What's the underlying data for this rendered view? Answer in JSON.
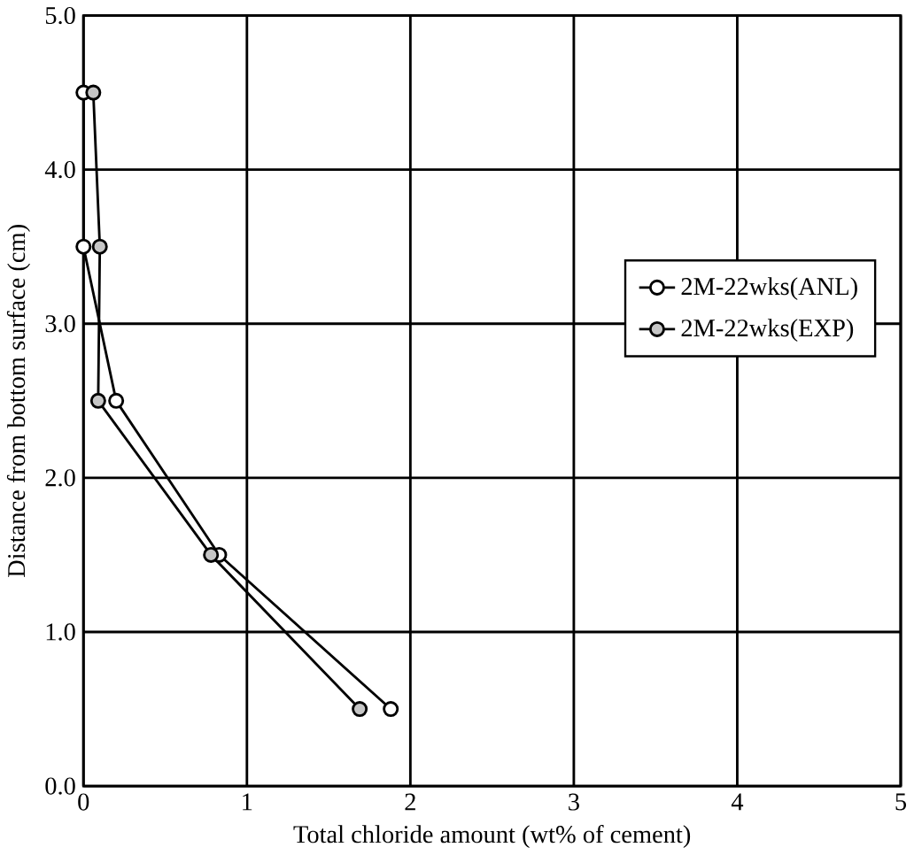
{
  "chart_data": {
    "type": "line",
    "xlabel": "Total chloride amount (wt% of cement)",
    "ylabel": "Distance from bottom surface (cm)",
    "xlim": [
      0,
      5
    ],
    "ylim": [
      0,
      5
    ],
    "xticks": [
      0,
      1,
      2,
      3,
      4,
      5
    ],
    "yticks": [
      {
        "value": 0,
        "label": "0.0"
      },
      {
        "value": 1,
        "label": "1.0"
      },
      {
        "value": 2,
        "label": "2.0"
      },
      {
        "value": 3,
        "label": "3.0"
      },
      {
        "value": 4,
        "label": "4.0"
      },
      {
        "value": 5,
        "label": "5.0"
      }
    ],
    "grid": true,
    "legend": "right",
    "marker": "circle",
    "line_style": "solid",
    "series": [
      {
        "name": "2M-22wks(ANL)",
        "color": "#000000",
        "x": [
          1.88,
          0.83,
          0.2,
          0.0,
          0.0
        ],
        "values": [
          0.5,
          1.5,
          2.5,
          3.5,
          4.5
        ]
      },
      {
        "name": "2M-22wks(EXP)",
        "color": "#000000",
        "x": [
          1.69,
          0.78,
          0.09,
          0.1,
          0.06
        ],
        "values": [
          0.5,
          1.5,
          2.5,
          3.5,
          4.5
        ]
      }
    ]
  }
}
